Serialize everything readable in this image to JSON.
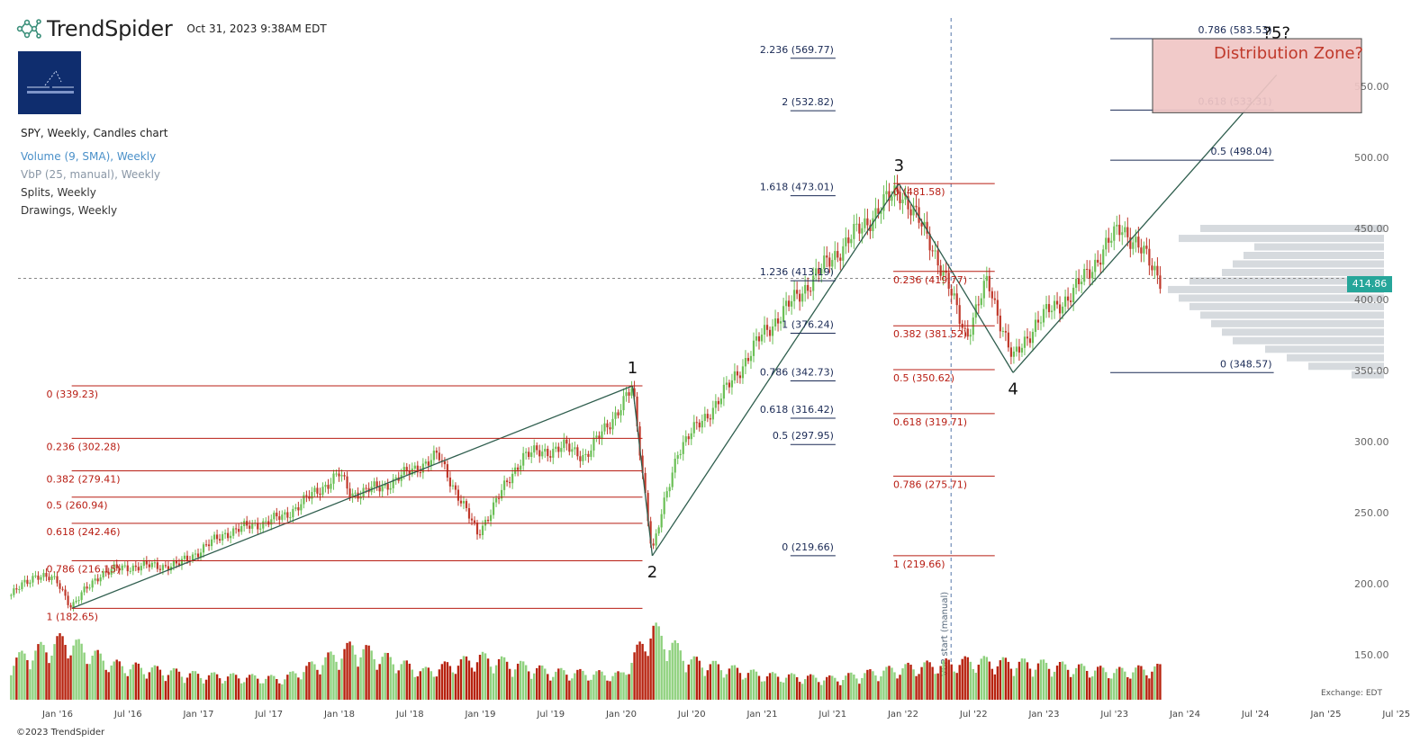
{
  "header": {
    "brand": "TrendSpider",
    "datetime": "Oct 31, 2023 9:38AM EDT",
    "logo_icon": "trendspider-logo-icon"
  },
  "indicators": {
    "main": "SPY, Weekly, Candles chart",
    "volume": "Volume (9, SMA), Weekly",
    "vbp": "VbP (25, manual), Weekly",
    "splits": "Splits, Weekly",
    "drawings": "Drawings, Weekly"
  },
  "footer": {
    "copyright": "©2023 TrendSpider",
    "exchange": "Exchange: EDT"
  },
  "colors": {
    "up": "#6abf55",
    "down": "#c0392b",
    "vol_up": "#8fd17e",
    "vol_down": "#b7220e",
    "fib_red": "#b81d13",
    "fib_navy": "#1a2a55",
    "line": "#2f5e4e",
    "vbp": "#cfd3d8",
    "price_tag": "#26a69a",
    "zone_fill": "#f0c6c5",
    "zone_text": "#c0392b"
  },
  "chart_data": {
    "type": "candlestick",
    "symbol": "SPY",
    "interval": "Weekly",
    "last_price": "414.86",
    "y_ticks": [
      "150.00",
      "200.00",
      "250.00",
      "300.00",
      "350.00",
      "400.00",
      "450.00",
      "500.00",
      "550.00"
    ],
    "y_tick_values": [
      150,
      200,
      250,
      300,
      350,
      400,
      450,
      500,
      550
    ],
    "x_ticks": [
      "Jan '16",
      "Jul '16",
      "Jan '17",
      "Jul '17",
      "Jan '18",
      "Jul '18",
      "Jan '19",
      "Jul '19",
      "Jan '20",
      "Jul '20",
      "Jan '21",
      "Jul '21",
      "Jan '22",
      "Jul '22",
      "Jan '23",
      "Jul '23",
      "Jan '24",
      "Jul '24",
      "Jan '25",
      "Jul '25"
    ],
    "x_tick_years": [
      2016,
      2016.5,
      2017,
      2017.5,
      2018,
      2018.5,
      2019,
      2019.5,
      2020,
      2020.5,
      2021,
      2021.5,
      2022,
      2022.5,
      2023,
      2023.5,
      2024,
      2024.5,
      2025,
      2025.5
    ],
    "price_path": [
      {
        "t": 2015.67,
        "p": 192
      },
      {
        "t": 2015.85,
        "p": 207
      },
      {
        "t": 2016.0,
        "p": 201
      },
      {
        "t": 2016.1,
        "p": 184
      },
      {
        "t": 2016.3,
        "p": 207
      },
      {
        "t": 2016.5,
        "p": 212
      },
      {
        "t": 2016.85,
        "p": 213
      },
      {
        "t": 2017.2,
        "p": 236
      },
      {
        "t": 2017.6,
        "p": 247
      },
      {
        "t": 2018.0,
        "p": 277
      },
      {
        "t": 2018.08,
        "p": 263
      },
      {
        "t": 2018.3,
        "p": 268
      },
      {
        "t": 2018.7,
        "p": 290
      },
      {
        "t": 2018.98,
        "p": 235
      },
      {
        "t": 2019.3,
        "p": 290
      },
      {
        "t": 2019.6,
        "p": 296
      },
      {
        "t": 2019.75,
        "p": 290
      },
      {
        "t": 2020.08,
        "p": 337
      },
      {
        "t": 2020.22,
        "p": 222
      },
      {
        "t": 2020.4,
        "p": 294
      },
      {
        "t": 2020.7,
        "p": 330
      },
      {
        "t": 2021.0,
        "p": 375
      },
      {
        "t": 2021.5,
        "p": 430
      },
      {
        "t": 2021.97,
        "p": 478
      },
      {
        "t": 2022.2,
        "p": 440
      },
      {
        "t": 2022.45,
        "p": 375
      },
      {
        "t": 2022.6,
        "p": 413
      },
      {
        "t": 2022.78,
        "p": 357
      },
      {
        "t": 2022.95,
        "p": 385
      },
      {
        "t": 2023.2,
        "p": 404
      },
      {
        "t": 2023.55,
        "p": 452
      },
      {
        "t": 2023.72,
        "p": 430
      },
      {
        "t": 2023.83,
        "p": 414.86
      }
    ],
    "volume_path": [
      {
        "t": 2015.67,
        "v": 0.55
      },
      {
        "t": 2016.05,
        "v": 0.85
      },
      {
        "t": 2016.4,
        "v": 0.5
      },
      {
        "t": 2017.0,
        "v": 0.35
      },
      {
        "t": 2017.6,
        "v": 0.3
      },
      {
        "t": 2018.1,
        "v": 0.75
      },
      {
        "t": 2018.6,
        "v": 0.4
      },
      {
        "t": 2019.0,
        "v": 0.6
      },
      {
        "t": 2019.5,
        "v": 0.4
      },
      {
        "t": 2020.0,
        "v": 0.35
      },
      {
        "t": 2020.22,
        "v": 1.0
      },
      {
        "t": 2020.5,
        "v": 0.55
      },
      {
        "t": 2021.0,
        "v": 0.35
      },
      {
        "t": 2021.5,
        "v": 0.3
      },
      {
        "t": 2022.0,
        "v": 0.45
      },
      {
        "t": 2022.5,
        "v": 0.55
      },
      {
        "t": 2023.0,
        "v": 0.5
      },
      {
        "t": 2023.5,
        "v": 0.4
      },
      {
        "t": 2023.83,
        "v": 0.45
      }
    ],
    "vbp_rows": [
      {
        "price": 450,
        "w": 0.85
      },
      {
        "price": 443,
        "w": 0.95
      },
      {
        "price": 437,
        "w": 0.6
      },
      {
        "price": 431,
        "w": 0.65
      },
      {
        "price": 425,
        "w": 0.7
      },
      {
        "price": 419,
        "w": 0.75
      },
      {
        "price": 413,
        "w": 0.9
      },
      {
        "price": 407,
        "w": 1.0
      },
      {
        "price": 401,
        "w": 0.95
      },
      {
        "price": 395,
        "w": 0.9
      },
      {
        "price": 389,
        "w": 0.85
      },
      {
        "price": 383,
        "w": 0.8
      },
      {
        "price": 377,
        "w": 0.75
      },
      {
        "price": 371,
        "w": 0.7
      },
      {
        "price": 365,
        "w": 0.55
      },
      {
        "price": 359,
        "w": 0.45
      },
      {
        "price": 353,
        "w": 0.35
      },
      {
        "price": 347,
        "w": 0.15
      }
    ],
    "elliott_waves": [
      {
        "label": "1",
        "t": 2020.08,
        "p": 339.23
      },
      {
        "label": "2",
        "t": 2020.22,
        "p": 219.66
      },
      {
        "label": "3",
        "t": 2021.97,
        "p": 481.58
      },
      {
        "label": "4",
        "t": 2022.78,
        "p": 348.57
      },
      {
        "label": "?5?",
        "t": 2024.65,
        "p": 575
      }
    ],
    "wave_lines": [
      {
        "t1": 2016.1,
        "p1": 182.65,
        "t2": 2020.08,
        "p2": 339.23
      },
      {
        "t1": 2020.08,
        "p1": 339.23,
        "t2": 2020.22,
        "p2": 219.66
      },
      {
        "t1": 2020.22,
        "p1": 219.66,
        "t2": 2021.97,
        "p2": 481.58
      },
      {
        "t1": 2021.97,
        "p1": 481.58,
        "t2": 2022.78,
        "p2": 348.57
      },
      {
        "t1": 2022.78,
        "p1": 348.57,
        "t2": 2024.65,
        "p2": 558
      }
    ],
    "fib_retrace_1": {
      "t1": 2016.1,
      "t2": 2020.15,
      "label_t": 2015.92,
      "levels": [
        {
          "label": "0 (339.23)",
          "p": 339.23
        },
        {
          "label": "0.236 (302.28)",
          "p": 302.28
        },
        {
          "label": "0.382 (279.41)",
          "p": 279.41
        },
        {
          "label": "0.5 (260.94)",
          "p": 260.94
        },
        {
          "label": "0.618 (242.46)",
          "p": 242.46
        },
        {
          "label": "0.786 (216.15)",
          "p": 216.15
        },
        {
          "label": "1 (182.65)",
          "p": 182.65
        }
      ]
    },
    "fib_extension_1": {
      "t1": 2021.2,
      "t2": 2021.52,
      "levels": [
        {
          "label": "2.236 (569.77)",
          "p": 569.77
        },
        {
          "label": "2 (532.82)",
          "p": 532.82
        },
        {
          "label": "1.618 (473.01)",
          "p": 473.01
        },
        {
          "label": "1.236 (413.19)",
          "p": 413.19
        },
        {
          "label": "1 (376.24)",
          "p": 376.24
        },
        {
          "label": "0.786 (342.73)",
          "p": 342.73
        },
        {
          "label": "0.618 (316.42)",
          "p": 316.42
        },
        {
          "label": "0.5 (297.95)",
          "p": 297.95
        },
        {
          "label": "0 (219.66)",
          "p": 219.66
        }
      ]
    },
    "fib_retrace_2": {
      "t1": 2021.93,
      "t2": 2022.65,
      "levels": [
        {
          "label": "0 (481.58)",
          "p": 481.58
        },
        {
          "label": "0.236 (419.77)",
          "p": 419.77
        },
        {
          "label": "0.382 (381.52)",
          "p": 381.52
        },
        {
          "label": "0.5 (350.62)",
          "p": 350.62
        },
        {
          "label": "0.618 (319.71)",
          "p": 319.71
        },
        {
          "label": "0.786 (275.71)",
          "p": 275.71
        },
        {
          "label": "1 (219.66)",
          "p": 219.66
        }
      ]
    },
    "fib_extension_2": {
      "t1": 2023.47,
      "t2": 2024.63,
      "levels": [
        {
          "label": "0.786 (583.53)",
          "p": 583.53
        },
        {
          "label": "0.618 (533.31)",
          "p": 533.31
        },
        {
          "label": "0.5 (498.04)",
          "p": 498.04
        },
        {
          "label": "0 (348.57)",
          "p": 348.57
        }
      ]
    },
    "distribution_zone": {
      "label": "Distribution Zone?",
      "t1": 2024.0,
      "t2": 2025.5,
      "p1": 533.31,
      "p2": 583.53
    },
    "vbp_start_label": "VbP start (manual)",
    "vbp_start_t": 2022.34
  }
}
